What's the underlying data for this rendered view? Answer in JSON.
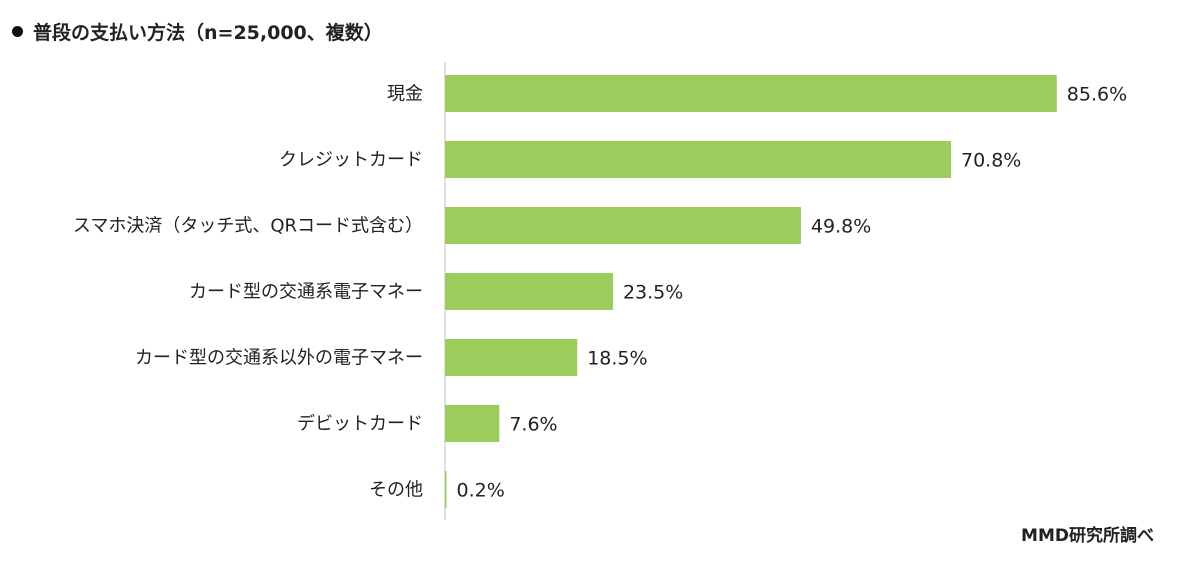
{
  "header": {
    "title": "普段の支払い方法（n=25,000、複数）"
  },
  "source": "MMD研究所調べ",
  "colors": {
    "bar": "#9bcc5c",
    "axis": "#bfbfbf"
  },
  "chart_data": {
    "type": "bar",
    "orientation": "horizontal",
    "title": "普段の支払い方法（n=25,000、複数）",
    "categories": [
      "現金",
      "クレジットカード",
      "スマホ決済（タッチ式、QRコード式含む）",
      "カード型の交通系電子マネー",
      "カード型の交通系以外の電子マネー",
      "デビットカード",
      "その他"
    ],
    "values": [
      85.6,
      70.8,
      49.8,
      23.5,
      18.5,
      7.6,
      0.2
    ],
    "value_labels": [
      "85.6%",
      "70.8%",
      "49.8%",
      "23.5%",
      "18.5%",
      "7.6%",
      "0.2%"
    ],
    "unit": "%",
    "xlim": [
      0,
      100
    ],
    "grid": false,
    "legend": "none"
  }
}
